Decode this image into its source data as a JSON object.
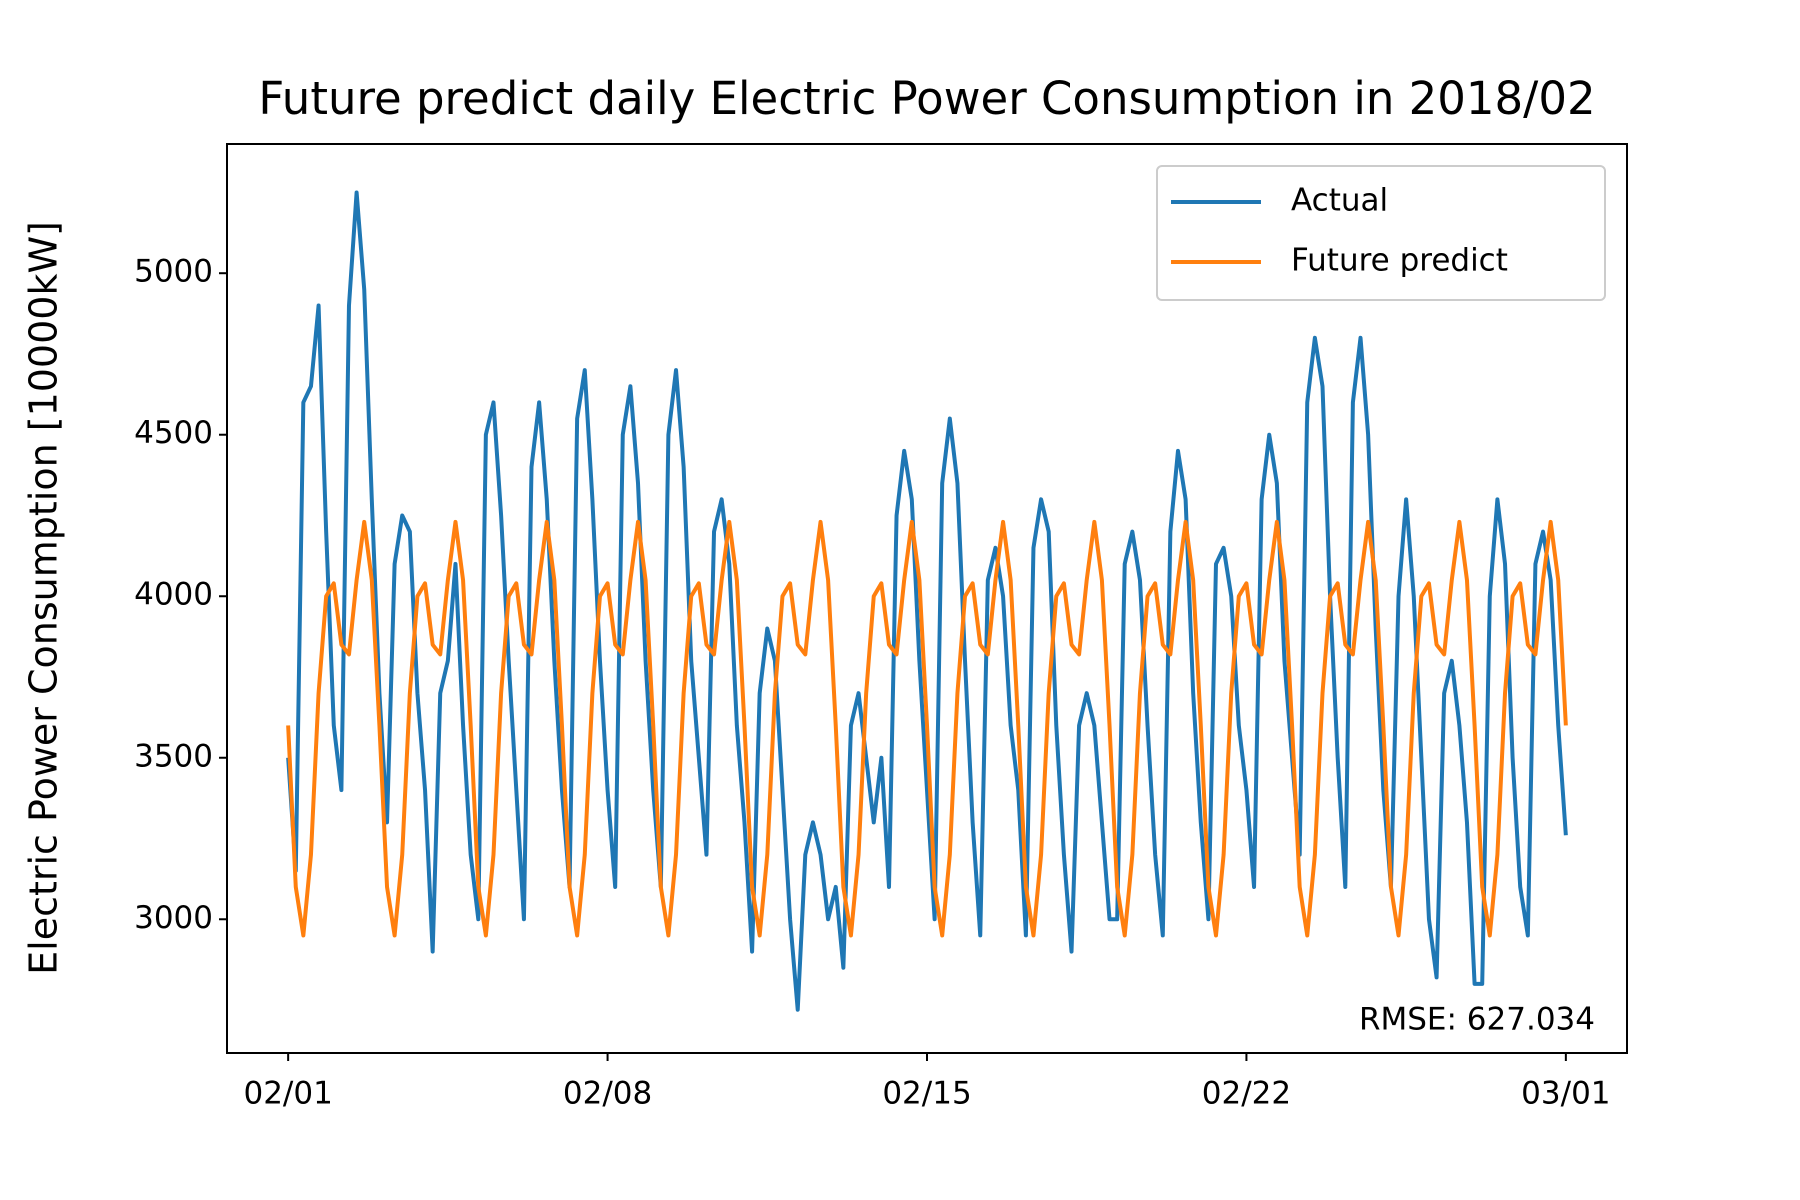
{
  "chart_data": {
    "type": "line",
    "title": "Future predict daily Electric Power Consumption in 2018/02",
    "ylabel": "Electric Power Consumption [10000kW]",
    "annotation": "RMSE: 627.034",
    "legend": "upper right",
    "grid": false,
    "xlim": [
      -1.34,
      29.34
    ],
    "ylim": [
      2586,
      5400
    ],
    "xticks": [
      {
        "value": 0,
        "label": "02/01"
      },
      {
        "value": 7,
        "label": "02/08"
      },
      {
        "value": 14,
        "label": "02/15"
      },
      {
        "value": 21,
        "label": "02/22"
      },
      {
        "value": 28,
        "label": "03/01"
      }
    ],
    "yticks": [
      3000,
      3500,
      4000,
      4500,
      5000
    ],
    "x": [
      0,
      0.167,
      0.333,
      0.5,
      0.667,
      0.833,
      1,
      1.167,
      1.333,
      1.5,
      1.667,
      1.833,
      2,
      2.167,
      2.333,
      2.5,
      2.667,
      2.833,
      3,
      3.167,
      3.333,
      3.5,
      3.667,
      3.833,
      4,
      4.167,
      4.333,
      4.5,
      4.667,
      4.833,
      5,
      5.167,
      5.333,
      5.5,
      5.667,
      5.833,
      6,
      6.167,
      6.333,
      6.5,
      6.667,
      6.833,
      7,
      7.167,
      7.333,
      7.5,
      7.667,
      7.833,
      8,
      8.167,
      8.333,
      8.5,
      8.667,
      8.833,
      9,
      9.167,
      9.333,
      9.5,
      9.667,
      9.833,
      10,
      10.167,
      10.333,
      10.5,
      10.667,
      10.833,
      11,
      11.167,
      11.333,
      11.5,
      11.667,
      11.833,
      12,
      12.167,
      12.333,
      12.5,
      12.667,
      12.833,
      13,
      13.167,
      13.333,
      13.5,
      13.667,
      13.833,
      14,
      14.167,
      14.333,
      14.5,
      14.667,
      14.833,
      15,
      15.167,
      15.333,
      15.5,
      15.667,
      15.833,
      16,
      16.167,
      16.333,
      16.5,
      16.667,
      16.833,
      17,
      17.167,
      17.333,
      17.5,
      17.667,
      17.833,
      18,
      18.167,
      18.333,
      18.5,
      18.667,
      18.833,
      19,
      19.167,
      19.333,
      19.5,
      19.667,
      19.833,
      20,
      20.167,
      20.333,
      20.5,
      20.667,
      20.833,
      21,
      21.167,
      21.333,
      21.5,
      21.667,
      21.833,
      22,
      22.167,
      22.333,
      22.5,
      22.667,
      22.833,
      23,
      23.167,
      23.333,
      23.5,
      23.667,
      23.833,
      24,
      24.167,
      24.333,
      24.5,
      24.667,
      24.833,
      25,
      25.167,
      25.333,
      25.5,
      25.667,
      25.833,
      26,
      26.167,
      26.333,
      26.5,
      26.667,
      26.833,
      27,
      27.167,
      27.333,
      27.5,
      27.667,
      27.833,
      28
    ],
    "series": [
      {
        "name": "Actual",
        "color": "#1f77b4",
        "values": [
          3500,
          3150,
          4600,
          4650,
          4900,
          4200,
          3600,
          3400,
          4900,
          5250,
          4950,
          4300,
          3700,
          3300,
          4100,
          4250,
          4200,
          3700,
          3400,
          2900,
          3700,
          3800,
          4100,
          3600,
          3200,
          3000,
          4500,
          4600,
          4250,
          3800,
          3400,
          3000,
          4400,
          4600,
          4300,
          3800,
          3400,
          3100,
          4550,
          4700,
          4300,
          3800,
          3400,
          3100,
          4500,
          4650,
          4350,
          3800,
          3400,
          3100,
          4500,
          4700,
          4400,
          3800,
          3500,
          3200,
          4200,
          4300,
          4100,
          3600,
          3300,
          2900,
          3700,
          3900,
          3800,
          3400,
          3000,
          2720,
          3200,
          3300,
          3200,
          3000,
          3100,
          2850,
          3600,
          3700,
          3500,
          3300,
          3500,
          3100,
          4250,
          4450,
          4300,
          3800,
          3400,
          3000,
          4350,
          4550,
          4350,
          3800,
          3300,
          2950,
          4050,
          4150,
          4000,
          3600,
          3400,
          2950,
          4150,
          4300,
          4200,
          3600,
          3200,
          2900,
          3600,
          3700,
          3600,
          3300,
          3000,
          3000,
          4100,
          4200,
          4050,
          3600,
          3200,
          2950,
          4200,
          4450,
          4300,
          3700,
          3300,
          3000,
          4100,
          4150,
          4000,
          3600,
          3400,
          3100,
          4300,
          4500,
          4350,
          3800,
          3500,
          3200,
          4600,
          4800,
          4650,
          4000,
          3500,
          3100,
          4600,
          4800,
          4500,
          3900,
          3400,
          3100,
          4000,
          4300,
          4000,
          3500,
          3000,
          2820,
          3700,
          3800,
          3600,
          3300,
          2800,
          2800,
          4000,
          4300,
          4100,
          3500,
          3100,
          2950,
          4100,
          4200,
          4050,
          3600,
          3260
        ]
      },
      {
        "name": "Future predict",
        "color": "#ff7f0e",
        "values": [
          3600,
          3100,
          2950,
          3200,
          3700,
          4000,
          4040,
          3850,
          3820,
          4050,
          4230,
          4050,
          3600,
          3100,
          2950,
          3200,
          3700,
          4000,
          4040,
          3850,
          3820,
          4050,
          4230,
          4050,
          3600,
          3100,
          2950,
          3200,
          3700,
          4000,
          4040,
          3850,
          3820,
          4050,
          4230,
          4050,
          3600,
          3100,
          2950,
          3200,
          3700,
          4000,
          4040,
          3850,
          3820,
          4050,
          4230,
          4050,
          3600,
          3100,
          2950,
          3200,
          3700,
          4000,
          4040,
          3850,
          3820,
          4050,
          4230,
          4050,
          3600,
          3100,
          2950,
          3200,
          3700,
          4000,
          4040,
          3850,
          3820,
          4050,
          4230,
          4050,
          3600,
          3100,
          2950,
          3200,
          3700,
          4000,
          4040,
          3850,
          3820,
          4050,
          4230,
          4050,
          3600,
          3100,
          2950,
          3200,
          3700,
          4000,
          4040,
          3850,
          3820,
          4050,
          4230,
          4050,
          3600,
          3100,
          2950,
          3200,
          3700,
          4000,
          4040,
          3850,
          3820,
          4050,
          4230,
          4050,
          3600,
          3100,
          2950,
          3200,
          3700,
          4000,
          4040,
          3850,
          3820,
          4050,
          4230,
          4050,
          3600,
          3100,
          2950,
          3200,
          3700,
          4000,
          4040,
          3850,
          3820,
          4050,
          4230,
          4050,
          3600,
          3100,
          2950,
          3200,
          3700,
          4000,
          4040,
          3850,
          3820,
          4050,
          4230,
          4050,
          3600,
          3100,
          2950,
          3200,
          3700,
          4000,
          4040,
          3850,
          3820,
          4050,
          4230,
          4050,
          3600,
          3100,
          2950,
          3200,
          3700,
          4000,
          4040,
          3850,
          3820,
          4050,
          4230,
          4050,
          3600
        ]
      }
    ]
  }
}
